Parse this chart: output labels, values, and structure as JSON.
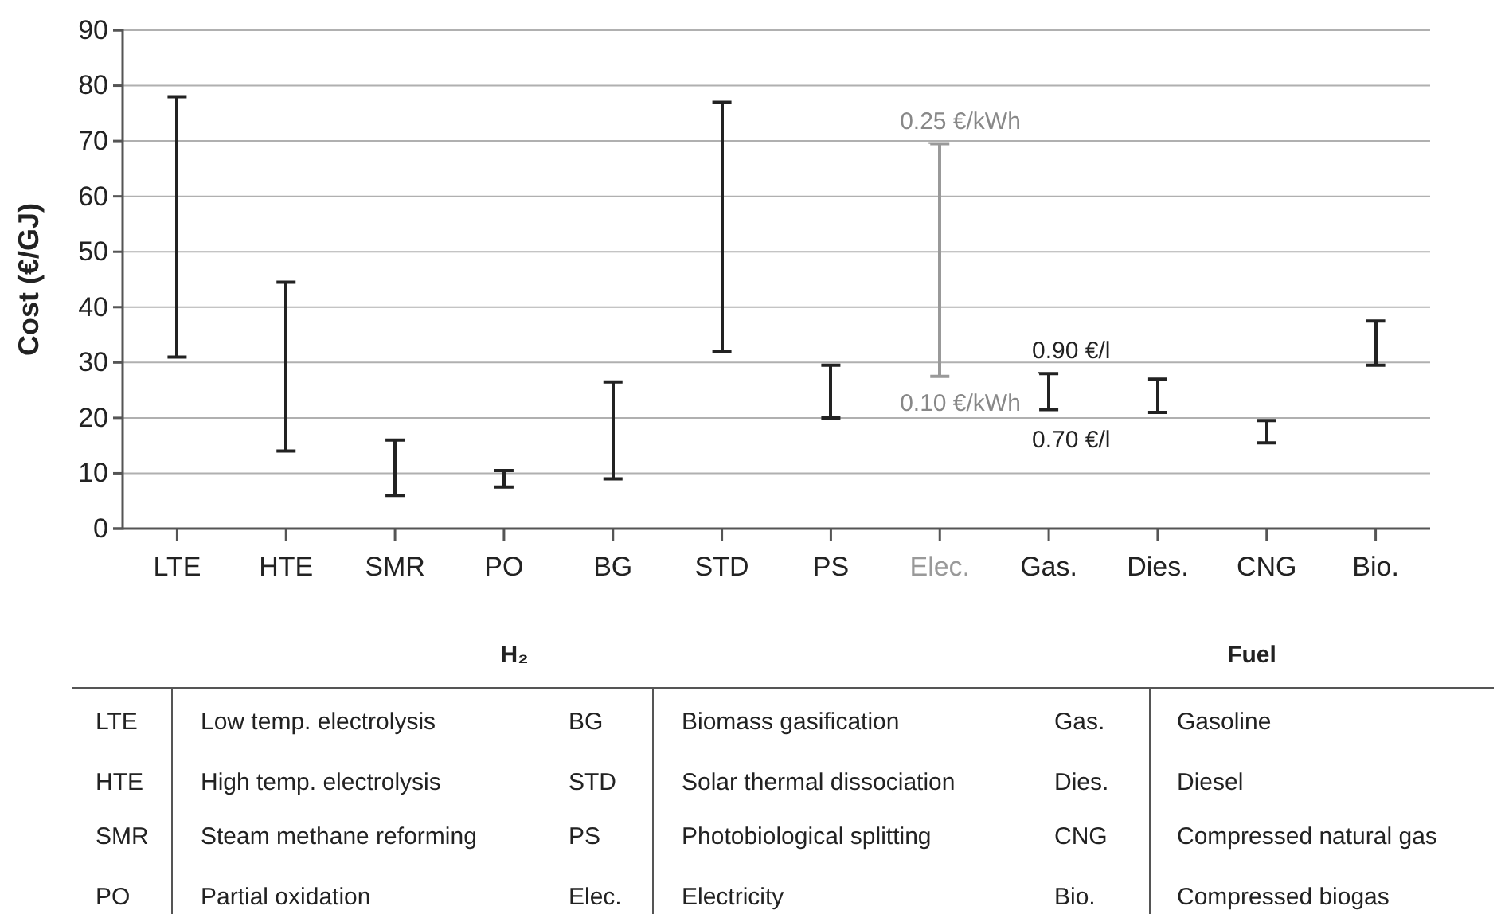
{
  "chart_data": {
    "type": "bar",
    "ylabel": "Cost (€/GJ)",
    "categories": [
      "LTE",
      "HTE",
      "SMR",
      "PO",
      "BG",
      "STD",
      "PS",
      "Elec.",
      "Gas.",
      "Dies.",
      "CNG",
      "Bio."
    ],
    "base": [
      31,
      14,
      6,
      7.5,
      9,
      32,
      20,
      27.5,
      21.5,
      21,
      15.5,
      29.5
    ],
    "values": [
      47,
      30.5,
      10,
      3,
      17.5,
      45,
      9.5,
      42,
      6.5,
      6,
      4,
      8
    ],
    "colors": [
      "#222222",
      "#222222",
      "#222222",
      "#222222",
      "#222222",
      "#222222",
      "#222222",
      "#999999",
      "#222222",
      "#222222",
      "#222222",
      "#222222"
    ],
    "ylim": [
      0,
      90
    ],
    "yticks": [
      0,
      10,
      20,
      30,
      40,
      50,
      60,
      70,
      80,
      90
    ],
    "grid": "y",
    "annotations": [
      "0.25 €/kWh",
      "0.10 €/kWh",
      "0.90 €/l",
      "0.70 €/l",
      "H₂",
      "Fuel",
      "LTE",
      "Low temp. electrolysis",
      "BG",
      "Biomass gasification",
      "Gas.",
      "Gasoline",
      "HTE",
      "High temp. electrolysis",
      "STD",
      "Solar thermal dissociation",
      "Dies.",
      "Diesel",
      "SMR",
      "Steam methane reforming",
      "PS",
      "Photobiological splitting",
      "CNG",
      "Compressed natural gas",
      "PO",
      "Partial oxidation",
      "Elec.",
      "Electricity",
      "Bio.",
      "Compressed biogas"
    ]
  }
}
